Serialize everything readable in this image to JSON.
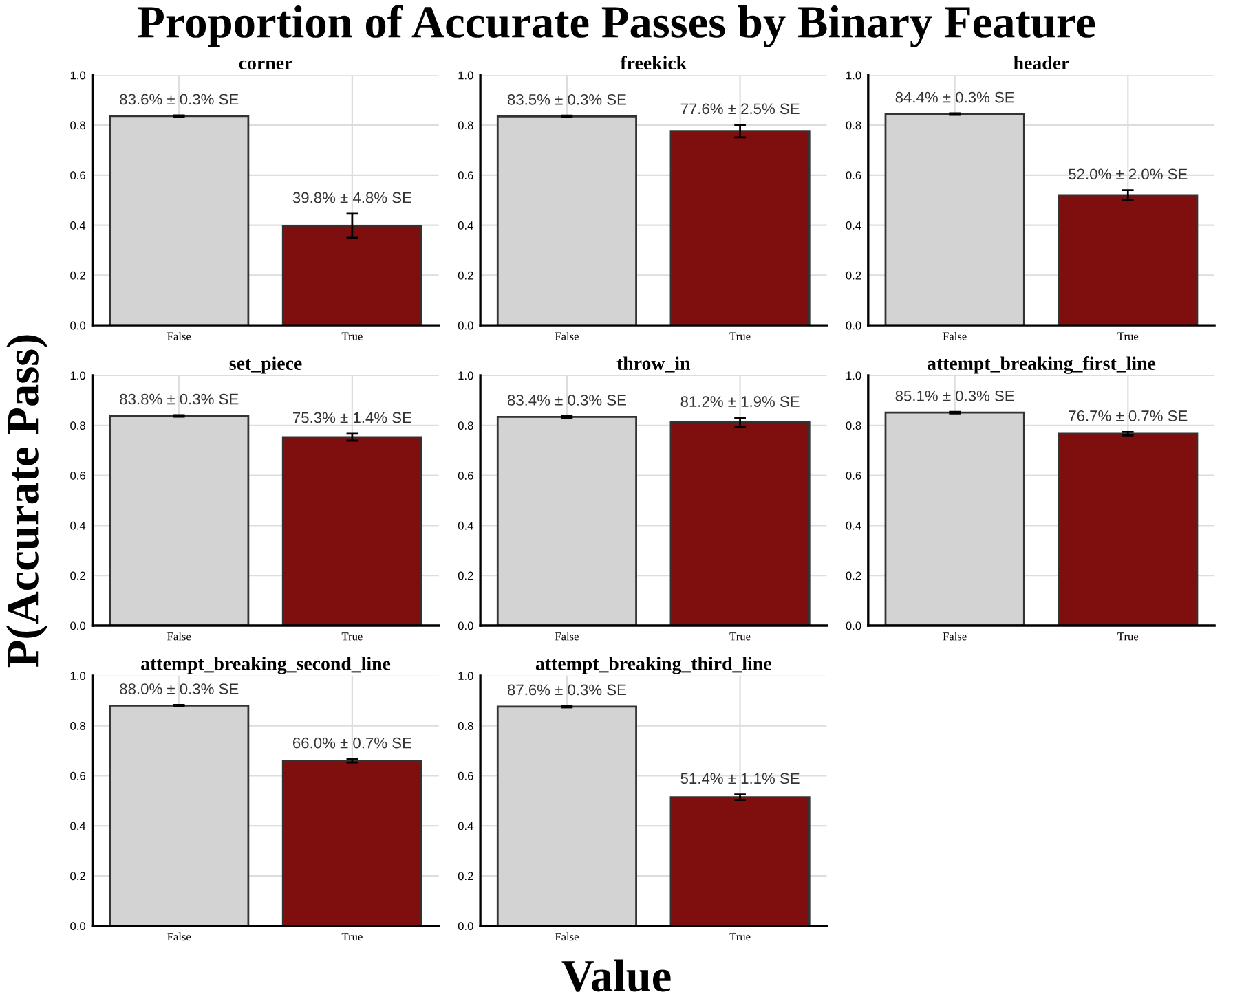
{
  "chart_data": [
    {
      "type": "other",
      "title": "Proportion of Accurate Passes by Binary Feature",
      "xlabel": "Value",
      "ylabel": "P(Accurate Pass)"
    },
    {
      "type": "bar",
      "title": "corner",
      "categories": [
        "False",
        "True"
      ],
      "values": [
        0.836,
        0.398
      ],
      "errors": [
        0.003,
        0.048
      ],
      "colors": [
        "#d3d3d3",
        "#7f0f0f"
      ],
      "value_labels": [
        "83.6% ± 0.3% SE",
        "39.8% ± 4.8% SE"
      ],
      "ylim": [
        0,
        1
      ],
      "yticks": [
        {
          "value": 0,
          "label": "0.0"
        },
        {
          "value": 0.2,
          "label": "0.2"
        },
        {
          "value": 0.4,
          "label": "0.4"
        },
        {
          "value": 0.6,
          "label": "0.6"
        },
        {
          "value": 0.8,
          "label": "0.8"
        },
        {
          "value": 1,
          "label": "1.0"
        }
      ],
      "grid": true
    },
    {
      "type": "bar",
      "title": "freekick",
      "categories": [
        "False",
        "True"
      ],
      "values": [
        0.835,
        0.776
      ],
      "errors": [
        0.003,
        0.025
      ],
      "colors": [
        "#d3d3d3",
        "#7f0f0f"
      ],
      "value_labels": [
        "83.5% ± 0.3% SE",
        "77.6% ± 2.5% SE"
      ],
      "ylim": [
        0,
        1
      ],
      "yticks": [
        {
          "value": 0,
          "label": "0.0"
        },
        {
          "value": 0.2,
          "label": "0.2"
        },
        {
          "value": 0.4,
          "label": "0.4"
        },
        {
          "value": 0.6,
          "label": "0.6"
        },
        {
          "value": 0.8,
          "label": "0.8"
        },
        {
          "value": 1,
          "label": "1.0"
        }
      ],
      "grid": true
    },
    {
      "type": "bar",
      "title": "header",
      "categories": [
        "False",
        "True"
      ],
      "values": [
        0.844,
        0.52
      ],
      "errors": [
        0.003,
        0.02
      ],
      "colors": [
        "#d3d3d3",
        "#7f0f0f"
      ],
      "value_labels": [
        "84.4% ± 0.3% SE",
        "52.0% ± 2.0% SE"
      ],
      "ylim": [
        0,
        1
      ],
      "yticks": [
        {
          "value": 0,
          "label": "0.0"
        },
        {
          "value": 0.2,
          "label": "0.2"
        },
        {
          "value": 0.4,
          "label": "0.4"
        },
        {
          "value": 0.6,
          "label": "0.6"
        },
        {
          "value": 0.8,
          "label": "0.8"
        },
        {
          "value": 1,
          "label": "1.0"
        }
      ],
      "grid": true
    },
    {
      "type": "bar",
      "title": "set_piece",
      "categories": [
        "False",
        "True"
      ],
      "values": [
        0.838,
        0.753
      ],
      "errors": [
        0.003,
        0.014
      ],
      "colors": [
        "#d3d3d3",
        "#7f0f0f"
      ],
      "value_labels": [
        "83.8% ± 0.3% SE",
        "75.3% ± 1.4% SE"
      ],
      "ylim": [
        0,
        1
      ],
      "yticks": [
        {
          "value": 0,
          "label": "0.0"
        },
        {
          "value": 0.2,
          "label": "0.2"
        },
        {
          "value": 0.4,
          "label": "0.4"
        },
        {
          "value": 0.6,
          "label": "0.6"
        },
        {
          "value": 0.8,
          "label": "0.8"
        },
        {
          "value": 1,
          "label": "1.0"
        }
      ],
      "grid": true
    },
    {
      "type": "bar",
      "title": "throw_in",
      "categories": [
        "False",
        "True"
      ],
      "values": [
        0.834,
        0.812
      ],
      "errors": [
        0.003,
        0.019
      ],
      "colors": [
        "#d3d3d3",
        "#7f0f0f"
      ],
      "value_labels": [
        "83.4% ± 0.3% SE",
        "81.2% ± 1.9% SE"
      ],
      "ylim": [
        0,
        1
      ],
      "yticks": [
        {
          "value": 0,
          "label": "0.0"
        },
        {
          "value": 0.2,
          "label": "0.2"
        },
        {
          "value": 0.4,
          "label": "0.4"
        },
        {
          "value": 0.6,
          "label": "0.6"
        },
        {
          "value": 0.8,
          "label": "0.8"
        },
        {
          "value": 1,
          "label": "1.0"
        }
      ],
      "grid": true
    },
    {
      "type": "bar",
      "title": "attempt_breaking_first_line",
      "categories": [
        "False",
        "True"
      ],
      "values": [
        0.851,
        0.767
      ],
      "errors": [
        0.003,
        0.007
      ],
      "colors": [
        "#d3d3d3",
        "#7f0f0f"
      ],
      "value_labels": [
        "85.1% ± 0.3% SE",
        "76.7% ± 0.7% SE"
      ],
      "ylim": [
        0,
        1
      ],
      "yticks": [
        {
          "value": 0,
          "label": "0.0"
        },
        {
          "value": 0.2,
          "label": "0.2"
        },
        {
          "value": 0.4,
          "label": "0.4"
        },
        {
          "value": 0.6,
          "label": "0.6"
        },
        {
          "value": 0.8,
          "label": "0.8"
        },
        {
          "value": 1,
          "label": "1.0"
        }
      ],
      "grid": true
    },
    {
      "type": "bar",
      "title": "attempt_breaking_second_line",
      "categories": [
        "False",
        "True"
      ],
      "values": [
        0.88,
        0.66
      ],
      "errors": [
        0.003,
        0.007
      ],
      "colors": [
        "#d3d3d3",
        "#7f0f0f"
      ],
      "value_labels": [
        "88.0% ± 0.3% SE",
        "66.0% ± 0.7% SE"
      ],
      "ylim": [
        0,
        1
      ],
      "yticks": [
        {
          "value": 0,
          "label": "0.0"
        },
        {
          "value": 0.2,
          "label": "0.2"
        },
        {
          "value": 0.4,
          "label": "0.4"
        },
        {
          "value": 0.6,
          "label": "0.6"
        },
        {
          "value": 0.8,
          "label": "0.8"
        },
        {
          "value": 1,
          "label": "1.0"
        }
      ],
      "grid": true
    },
    {
      "type": "bar",
      "title": "attempt_breaking_third_line",
      "categories": [
        "False",
        "True"
      ],
      "values": [
        0.876,
        0.514
      ],
      "errors": [
        0.003,
        0.011
      ],
      "colors": [
        "#d3d3d3",
        "#7f0f0f"
      ],
      "value_labels": [
        "87.6% ± 0.3% SE",
        "51.4% ± 1.1% SE"
      ],
      "ylim": [
        0,
        1
      ],
      "yticks": [
        {
          "value": 0,
          "label": "0.0"
        },
        {
          "value": 0.2,
          "label": "0.2"
        },
        {
          "value": 0.4,
          "label": "0.4"
        },
        {
          "value": 0.6,
          "label": "0.6"
        },
        {
          "value": 0.8,
          "label": "0.8"
        },
        {
          "value": 1,
          "label": "1.0"
        }
      ],
      "grid": true
    }
  ]
}
